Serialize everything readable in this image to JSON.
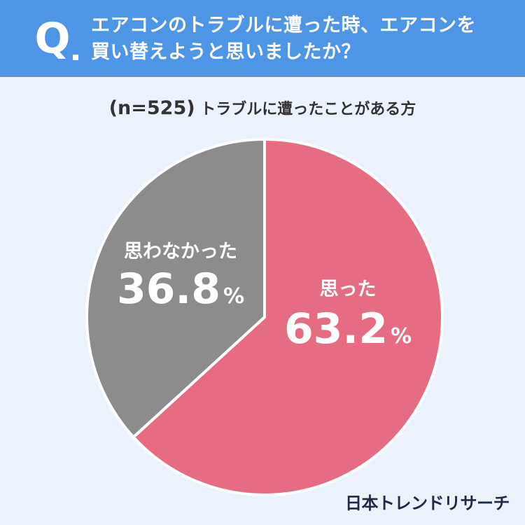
{
  "header": {
    "q_mark": "Q",
    "question_line1": "エアコンのトラブルに遭った時、エアコンを",
    "question_line2": "買い替えようと思いましたか？"
  },
  "subtitle": {
    "sample_size": "(n=525)",
    "description": "トラブルに遭ったことがある方"
  },
  "chart_data": {
    "type": "pie",
    "start_angle": "12 o'clock",
    "direction": "clockwise",
    "slices": [
      {
        "label": "思った",
        "value": 63.2,
        "display": "63.2",
        "unit": "%",
        "color": "#e56c82"
      },
      {
        "label": "思わなかった",
        "value": 36.8,
        "display": "36.8",
        "unit": "%",
        "color": "#8c8c8c"
      }
    ],
    "label_color": "#ffffff"
  },
  "colors": {
    "header_bg": "#4f95e6",
    "page_bg": "#ebf2fb"
  },
  "credit": "日本トレンドリサーチ"
}
